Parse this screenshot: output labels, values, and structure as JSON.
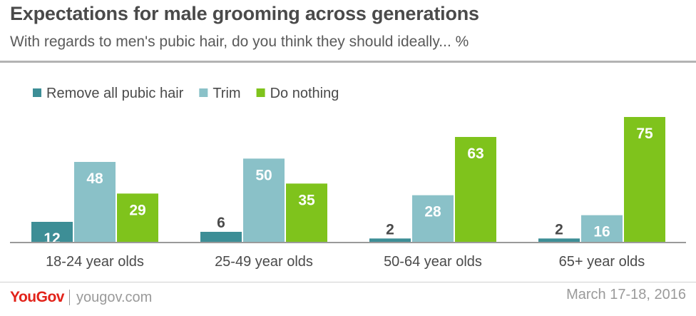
{
  "header": {
    "title": "Expectations for male grooming across generations",
    "subtitle": "With regards to men's pubic hair, do you think they should ideally... %"
  },
  "footer": {
    "brand": "YouGov",
    "website": "yougov.com",
    "date": "March 17-18, 2016"
  },
  "colors": {
    "remove": "#3d8e96",
    "trim": "#8ac1c8",
    "nothing": "#7fc31c",
    "axis": "#9a9a9a",
    "text": "#4a4a4a"
  },
  "chart_data": {
    "type": "bar",
    "categories": [
      "18-24 year olds",
      "25-49 year olds",
      "50-64 year olds",
      "65+ year olds"
    ],
    "series": [
      {
        "name": "Remove all pubic hair",
        "values": [
          12,
          6,
          2,
          2
        ]
      },
      {
        "name": "Trim",
        "values": [
          48,
          50,
          28,
          16
        ]
      },
      {
        "name": "Do nothing",
        "values": [
          29,
          35,
          63,
          75
        ]
      }
    ],
    "ylim": [
      0,
      80
    ],
    "grid": false,
    "legend": "top-left",
    "xlabel": "",
    "ylabel": ""
  }
}
